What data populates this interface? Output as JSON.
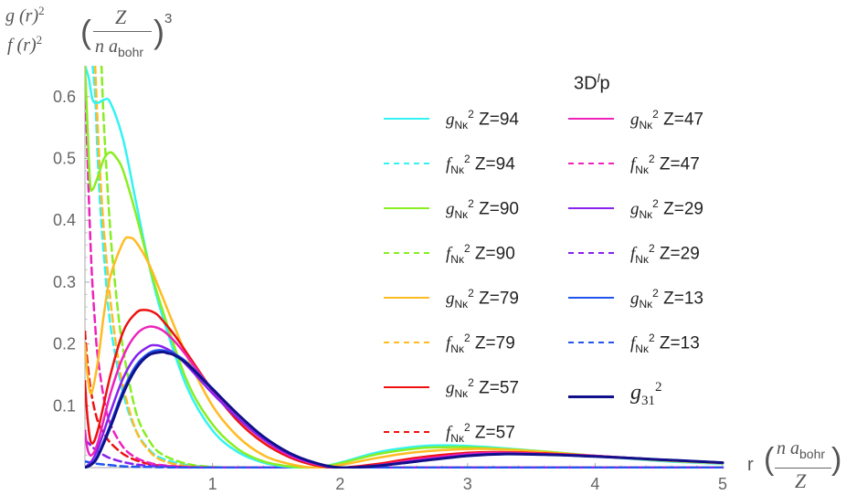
{
  "header": {
    "ylabel_g": "g (r)",
    "ylabel_f": "f (r)",
    "ylabel_sq": "2",
    "unit_num": "Z",
    "unit_den": "n a",
    "unit_den_sub": "bohr",
    "unit_exp": "3"
  },
  "xaxis": {
    "label_r": "r",
    "label_num": "n a",
    "label_num_sub": "bohr",
    "label_den": "Z"
  },
  "legend": {
    "title": "3D",
    "title_sup": "l",
    "title_suffix": "p",
    "g_symbol": "g",
    "f_symbol": "f",
    "sub": "Nκ",
    "sup": "2",
    "items": [
      {
        "kind": "g",
        "label": "Z=94",
        "color": "#33f3f3",
        "dash": false
      },
      {
        "kind": "f",
        "label": "Z=94",
        "color": "#33f3f3",
        "dash": true
      },
      {
        "kind": "g",
        "label": "Z=90",
        "color": "#88ee22",
        "dash": false
      },
      {
        "kind": "f",
        "label": "Z=90",
        "color": "#88ee22",
        "dash": true
      },
      {
        "kind": "g",
        "label": "Z=79",
        "color": "#ffbb22",
        "dash": false
      },
      {
        "kind": "f",
        "label": "Z=79",
        "color": "#ffbb22",
        "dash": true
      },
      {
        "kind": "g",
        "label": "Z=57",
        "color": "#ee1111",
        "dash": false
      },
      {
        "kind": "f",
        "label": "Z=57",
        "color": "#ee1111",
        "dash": true
      },
      {
        "kind": "g",
        "label": "Z=47",
        "color": "#ee22bb",
        "dash": false
      },
      {
        "kind": "f",
        "label": "Z=47",
        "color": "#ee22bb",
        "dash": true
      },
      {
        "kind": "g",
        "label": "Z=29",
        "color": "#8822ee",
        "dash": false
      },
      {
        "kind": "f",
        "label": "Z=29",
        "color": "#8822ee",
        "dash": true
      },
      {
        "kind": "g",
        "label": "Z=13",
        "color": "#2255ee",
        "dash": false
      },
      {
        "kind": "f",
        "label": "Z=13",
        "color": "#2255ee",
        "dash": true
      }
    ],
    "ref": {
      "symbol": "g",
      "sub": "31",
      "sup": "2",
      "color": "#10108a"
    }
  },
  "chart_data": {
    "type": "line",
    "xlim": [
      0,
      5
    ],
    "ylim": [
      0,
      0.65
    ],
    "xticks": [
      1,
      2,
      3,
      4,
      5
    ],
    "yticks": [
      0.1,
      0.2,
      0.3,
      0.4,
      0.5,
      0.6
    ],
    "series": [
      {
        "name": "g_Nκ^2 Z=94",
        "color": "#33f3f3",
        "dash": false,
        "x": [
          0.0,
          0.03,
          0.06,
          0.1,
          0.15,
          0.2,
          0.3,
          0.4,
          0.5,
          0.6,
          0.8,
          1.0,
          1.2,
          1.4,
          1.6,
          1.8,
          2.0,
          2.3,
          2.6,
          2.8,
          3.0,
          3.3,
          3.6,
          4.0,
          4.5,
          5.0
        ],
        "y": [
          0.65,
          0.63,
          0.595,
          0.59,
          0.595,
          0.59,
          0.53,
          0.43,
          0.33,
          0.25,
          0.13,
          0.06,
          0.025,
          0.008,
          0.001,
          0.0,
          0.008,
          0.025,
          0.034,
          0.036,
          0.035,
          0.031,
          0.026,
          0.019,
          0.011,
          0.006
        ]
      },
      {
        "name": "f_Nκ^2 Z=94",
        "color": "#33f3f3",
        "dash": true,
        "x": [
          0.06,
          0.08,
          0.1,
          0.12,
          0.15,
          0.2,
          0.3,
          0.4,
          0.5,
          0.6,
          0.8,
          1.0,
          1.2,
          1.5,
          2.0,
          3.0,
          5.0
        ],
        "y": [
          0.65,
          0.6,
          0.5,
          0.42,
          0.34,
          0.23,
          0.12,
          0.06,
          0.03,
          0.015,
          0.004,
          0.001,
          0.0,
          0.0,
          0.0,
          0.0,
          0.0
        ]
      },
      {
        "name": "g_Nκ^2 Z=90",
        "color": "#88ee22",
        "dash": false,
        "x": [
          0.0,
          0.02,
          0.04,
          0.06,
          0.1,
          0.15,
          0.2,
          0.25,
          0.3,
          0.4,
          0.5,
          0.6,
          0.8,
          1.0,
          1.2,
          1.4,
          1.6,
          1.8,
          2.0,
          2.3,
          2.6,
          2.8,
          3.0,
          3.3,
          3.6,
          4.0,
          4.5,
          5.0
        ],
        "y": [
          0.65,
          0.55,
          0.46,
          0.45,
          0.47,
          0.5,
          0.51,
          0.5,
          0.48,
          0.41,
          0.33,
          0.26,
          0.14,
          0.07,
          0.03,
          0.01,
          0.002,
          0.0,
          0.007,
          0.022,
          0.031,
          0.033,
          0.033,
          0.03,
          0.026,
          0.019,
          0.012,
          0.007
        ]
      },
      {
        "name": "f_Nκ^2 Z=90",
        "color": "#88ee22",
        "dash": true,
        "x": [
          0.13,
          0.15,
          0.2,
          0.25,
          0.3,
          0.4,
          0.5,
          0.6,
          0.8,
          1.0,
          1.2,
          1.5,
          2.0,
          3.0,
          5.0
        ],
        "y": [
          0.65,
          0.55,
          0.38,
          0.27,
          0.19,
          0.09,
          0.045,
          0.022,
          0.006,
          0.001,
          0.0,
          0.0,
          0.0,
          0.0,
          0.0
        ]
      },
      {
        "name": "g_Nκ^2 Z=79",
        "color": "#ffbb22",
        "dash": false,
        "x": [
          0.0,
          0.02,
          0.05,
          0.1,
          0.15,
          0.2,
          0.3,
          0.35,
          0.4,
          0.5,
          0.6,
          0.8,
          1.0,
          1.2,
          1.4,
          1.6,
          1.8,
          2.0,
          2.3,
          2.6,
          3.0,
          3.3,
          3.6,
          4.0,
          4.5,
          5.0
        ],
        "y": [
          0.2,
          0.15,
          0.12,
          0.17,
          0.25,
          0.31,
          0.365,
          0.372,
          0.365,
          0.33,
          0.28,
          0.18,
          0.1,
          0.05,
          0.02,
          0.006,
          0.0,
          0.004,
          0.016,
          0.025,
          0.03,
          0.029,
          0.025,
          0.019,
          0.012,
          0.007
        ]
      },
      {
        "name": "f_Nκ^2 Z=79",
        "color": "#ffbb22",
        "dash": true,
        "x": [
          0.08,
          0.1,
          0.12,
          0.15,
          0.2,
          0.25,
          0.3,
          0.4,
          0.5,
          0.6,
          0.8,
          1.0,
          1.2,
          1.5,
          2.0,
          3.0,
          5.0
        ],
        "y": [
          0.65,
          0.55,
          0.47,
          0.38,
          0.27,
          0.19,
          0.13,
          0.06,
          0.028,
          0.012,
          0.002,
          0.0,
          0.0,
          0.0,
          0.0,
          0.0,
          0.0
        ]
      },
      {
        "name": "g_Nκ^2 Z=57",
        "color": "#ee1111",
        "dash": false,
        "x": [
          0.0,
          0.02,
          0.05,
          0.1,
          0.2,
          0.3,
          0.4,
          0.47,
          0.55,
          0.6,
          0.7,
          0.8,
          1.0,
          1.2,
          1.4,
          1.6,
          1.8,
          2.0,
          2.3,
          2.6,
          3.0,
          3.3,
          3.6,
          4.0,
          4.5,
          5.0
        ],
        "y": [
          0.14,
          0.08,
          0.04,
          0.06,
          0.15,
          0.22,
          0.25,
          0.255,
          0.25,
          0.24,
          0.215,
          0.185,
          0.125,
          0.075,
          0.04,
          0.017,
          0.004,
          0.0,
          0.006,
          0.016,
          0.024,
          0.025,
          0.023,
          0.019,
          0.013,
          0.008
        ]
      },
      {
        "name": "f_Nκ^2 Z=57",
        "color": "#ee1111",
        "dash": true,
        "x": [
          0.0,
          0.02,
          0.05,
          0.1,
          0.15,
          0.2,
          0.3,
          0.4,
          0.5,
          0.6,
          0.8,
          1.0,
          1.3,
          1.6,
          2.0,
          3.0,
          5.0
        ],
        "y": [
          0.22,
          0.17,
          0.12,
          0.075,
          0.055,
          0.04,
          0.022,
          0.012,
          0.006,
          0.003,
          0.001,
          0.0,
          0.0,
          0.0,
          0.0,
          0.0,
          0.0
        ]
      },
      {
        "name": "g_Nκ^2 Z=47",
        "color": "#ee22bb",
        "dash": false,
        "x": [
          0.0,
          0.02,
          0.05,
          0.1,
          0.2,
          0.3,
          0.4,
          0.5,
          0.6,
          0.7,
          0.8,
          1.0,
          1.2,
          1.4,
          1.6,
          1.8,
          2.0,
          2.3,
          2.6,
          3.0,
          3.3,
          3.6,
          4.0,
          4.5,
          5.0
        ],
        "y": [
          0.06,
          0.03,
          0.02,
          0.04,
          0.12,
          0.18,
          0.215,
          0.228,
          0.223,
          0.205,
          0.18,
          0.125,
          0.08,
          0.045,
          0.02,
          0.006,
          0.0,
          0.004,
          0.013,
          0.022,
          0.024,
          0.022,
          0.019,
          0.013,
          0.008
        ]
      },
      {
        "name": "f_Nκ^2 Z=47",
        "color": "#ee22bb",
        "dash": true,
        "x": [
          0.0,
          0.02,
          0.05,
          0.08,
          0.1,
          0.15,
          0.2,
          0.3,
          0.4,
          0.5,
          0.6,
          0.8,
          1.0,
          1.3,
          2.0,
          5.0
        ],
        "y": [
          0.65,
          0.5,
          0.33,
          0.23,
          0.18,
          0.11,
          0.07,
          0.033,
          0.016,
          0.008,
          0.004,
          0.001,
          0.0,
          0.0,
          0.0,
          0.0
        ]
      },
      {
        "name": "g_Nκ^2 Z=29",
        "color": "#8822ee",
        "dash": false,
        "x": [
          0.0,
          0.05,
          0.1,
          0.2,
          0.3,
          0.4,
          0.5,
          0.55,
          0.6,
          0.7,
          0.8,
          1.0,
          1.2,
          1.4,
          1.6,
          1.8,
          2.0,
          2.3,
          2.6,
          3.0,
          3.3,
          3.6,
          4.0,
          4.5,
          5.0
        ],
        "y": [
          0.0,
          0.01,
          0.03,
          0.09,
          0.145,
          0.18,
          0.196,
          0.198,
          0.196,
          0.185,
          0.165,
          0.12,
          0.08,
          0.046,
          0.022,
          0.007,
          0.0,
          0.003,
          0.011,
          0.02,
          0.022,
          0.021,
          0.018,
          0.013,
          0.008
        ]
      },
      {
        "name": "f_Nκ^2 Z=29",
        "color": "#8822ee",
        "dash": true,
        "x": [
          0.0,
          0.05,
          0.1,
          0.15,
          0.2,
          0.3,
          0.4,
          0.5,
          0.6,
          0.8,
          1.0,
          1.5,
          2.0,
          5.0
        ],
        "y": [
          0.045,
          0.035,
          0.026,
          0.02,
          0.015,
          0.009,
          0.005,
          0.003,
          0.002,
          0.0,
          0.0,
          0.0,
          0.0,
          0.0
        ]
      },
      {
        "name": "g_Nκ^2 Z=13",
        "color": "#2255ee",
        "dash": false,
        "x": [
          0.0,
          0.05,
          0.1,
          0.2,
          0.3,
          0.4,
          0.5,
          0.58,
          0.65,
          0.7,
          0.8,
          1.0,
          1.2,
          1.4,
          1.6,
          1.8,
          2.0,
          2.3,
          2.6,
          3.0,
          3.3,
          3.6,
          4.0,
          4.5,
          5.0
        ],
        "y": [
          0.0,
          0.006,
          0.02,
          0.07,
          0.125,
          0.165,
          0.185,
          0.19,
          0.188,
          0.184,
          0.17,
          0.128,
          0.086,
          0.05,
          0.024,
          0.008,
          0.0,
          0.003,
          0.01,
          0.019,
          0.022,
          0.021,
          0.018,
          0.013,
          0.008
        ]
      },
      {
        "name": "f_Nκ^2 Z=13",
        "color": "#2255ee",
        "dash": true,
        "x": [
          0.0,
          0.05,
          0.1,
          0.2,
          0.3,
          0.5,
          0.8,
          1.0,
          1.5,
          2.0,
          5.0
        ],
        "y": [
          0.01,
          0.008,
          0.006,
          0.004,
          0.002,
          0.001,
          0.0,
          0.0,
          0.0,
          0.0,
          0.0
        ]
      },
      {
        "name": "g_31^2",
        "color": "#10108a",
        "dash": false,
        "x": [
          0.0,
          0.05,
          0.1,
          0.2,
          0.3,
          0.4,
          0.5,
          0.6,
          0.65,
          0.7,
          0.8,
          1.0,
          1.2,
          1.4,
          1.6,
          1.8,
          2.0,
          2.3,
          2.6,
          3.0,
          3.3,
          3.6,
          4.0,
          4.5,
          5.0
        ],
        "y": [
          0.0,
          0.005,
          0.018,
          0.066,
          0.12,
          0.16,
          0.182,
          0.187,
          0.185,
          0.182,
          0.168,
          0.127,
          0.086,
          0.05,
          0.024,
          0.008,
          0.0,
          0.003,
          0.01,
          0.019,
          0.022,
          0.021,
          0.018,
          0.013,
          0.008
        ]
      }
    ]
  }
}
